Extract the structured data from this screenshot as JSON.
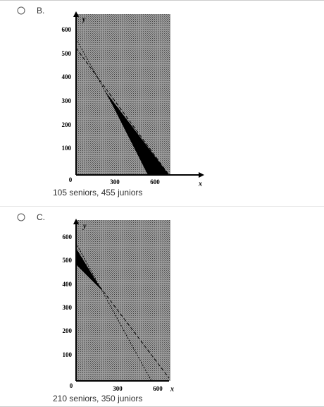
{
  "options": [
    {
      "letter": "B.",
      "graph": {
        "y_label": "y",
        "x_label": "x",
        "yticks": [
          600,
          500,
          400,
          300,
          200,
          100
        ],
        "xticks": [
          0,
          300,
          600
        ]
      },
      "caption": "105 seniors, 455 juniors"
    },
    {
      "letter": "C.",
      "graph": {
        "y_label": "y",
        "x_label": "x",
        "yticks": [
          600,
          500,
          400,
          300,
          200,
          100
        ],
        "xticks": [
          0,
          300,
          600
        ]
      },
      "caption": "210 seniors, 350 juniors"
    }
  ]
}
